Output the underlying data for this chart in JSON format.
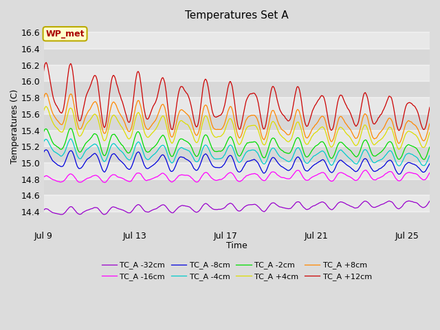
{
  "title": "Temperatures Set A",
  "xlabel": "Time",
  "ylabel": "Temperatures (C)",
  "ylim": [
    14.2,
    16.7
  ],
  "xlim_days": [
    0,
    17.0
  ],
  "x_ticks_days": [
    0,
    4,
    8,
    12,
    16
  ],
  "x_tick_labels": [
    "Jul 9",
    "Jul 13",
    "Jul 17",
    "Jul 21",
    "Jul 25"
  ],
  "y_ticks": [
    14.4,
    14.6,
    14.8,
    15.0,
    15.2,
    15.4,
    15.6,
    15.8,
    16.0,
    16.2,
    16.4,
    16.6
  ],
  "background_color": "#dcdcdc",
  "plot_bg_color": "#dcdcdc",
  "grid_color": "#f0f0f0",
  "annotation_text": "WP_met",
  "annotation_bg": "#ffffcc",
  "annotation_border": "#bbaa00",
  "annotation_text_color": "#aa0000",
  "series": [
    {
      "label": "TC_A -32cm",
      "color": "#9900cc",
      "base": 14.39,
      "amp_start": 0.04,
      "amp_end": 0.04,
      "noise": 0.015,
      "trend_end": 14.5,
      "seed": 1
    },
    {
      "label": "TC_A -16cm",
      "color": "#ff00ff",
      "base": 14.8,
      "amp_start": 0.04,
      "amp_end": 0.05,
      "noise": 0.018,
      "trend_end": 14.85,
      "seed": 2
    },
    {
      "label": "TC_A -8cm",
      "color": "#0000dd",
      "base": 15.05,
      "amp_start": 0.1,
      "amp_end": 0.06,
      "noise": 0.02,
      "trend_end": 14.95,
      "seed": 3
    },
    {
      "label": "TC_A -4cm",
      "color": "#00cccc",
      "base": 15.18,
      "amp_start": 0.1,
      "amp_end": 0.07,
      "noise": 0.02,
      "trend_end": 15.05,
      "seed": 4
    },
    {
      "label": "TC_A -2cm",
      "color": "#00dd00",
      "base": 15.28,
      "amp_start": 0.12,
      "amp_end": 0.08,
      "noise": 0.022,
      "trend_end": 15.15,
      "seed": 5
    },
    {
      "label": "TC_A +4cm",
      "color": "#dddd00",
      "base": 15.52,
      "amp_start": 0.15,
      "amp_end": 0.1,
      "noise": 0.025,
      "trend_end": 15.3,
      "seed": 6
    },
    {
      "label": "TC_A +8cm",
      "color": "#ff8800",
      "base": 15.65,
      "amp_start": 0.18,
      "amp_end": 0.12,
      "noise": 0.028,
      "trend_end": 15.4,
      "seed": 7
    },
    {
      "label": "TC_A +12cm",
      "color": "#cc0000",
      "base": 15.88,
      "amp_start": 0.3,
      "amp_end": 0.15,
      "noise": 0.035,
      "trend_end": 15.6,
      "seed": 8
    }
  ],
  "legend_cols": 4,
  "n_points": 600,
  "days_total": 17.0
}
